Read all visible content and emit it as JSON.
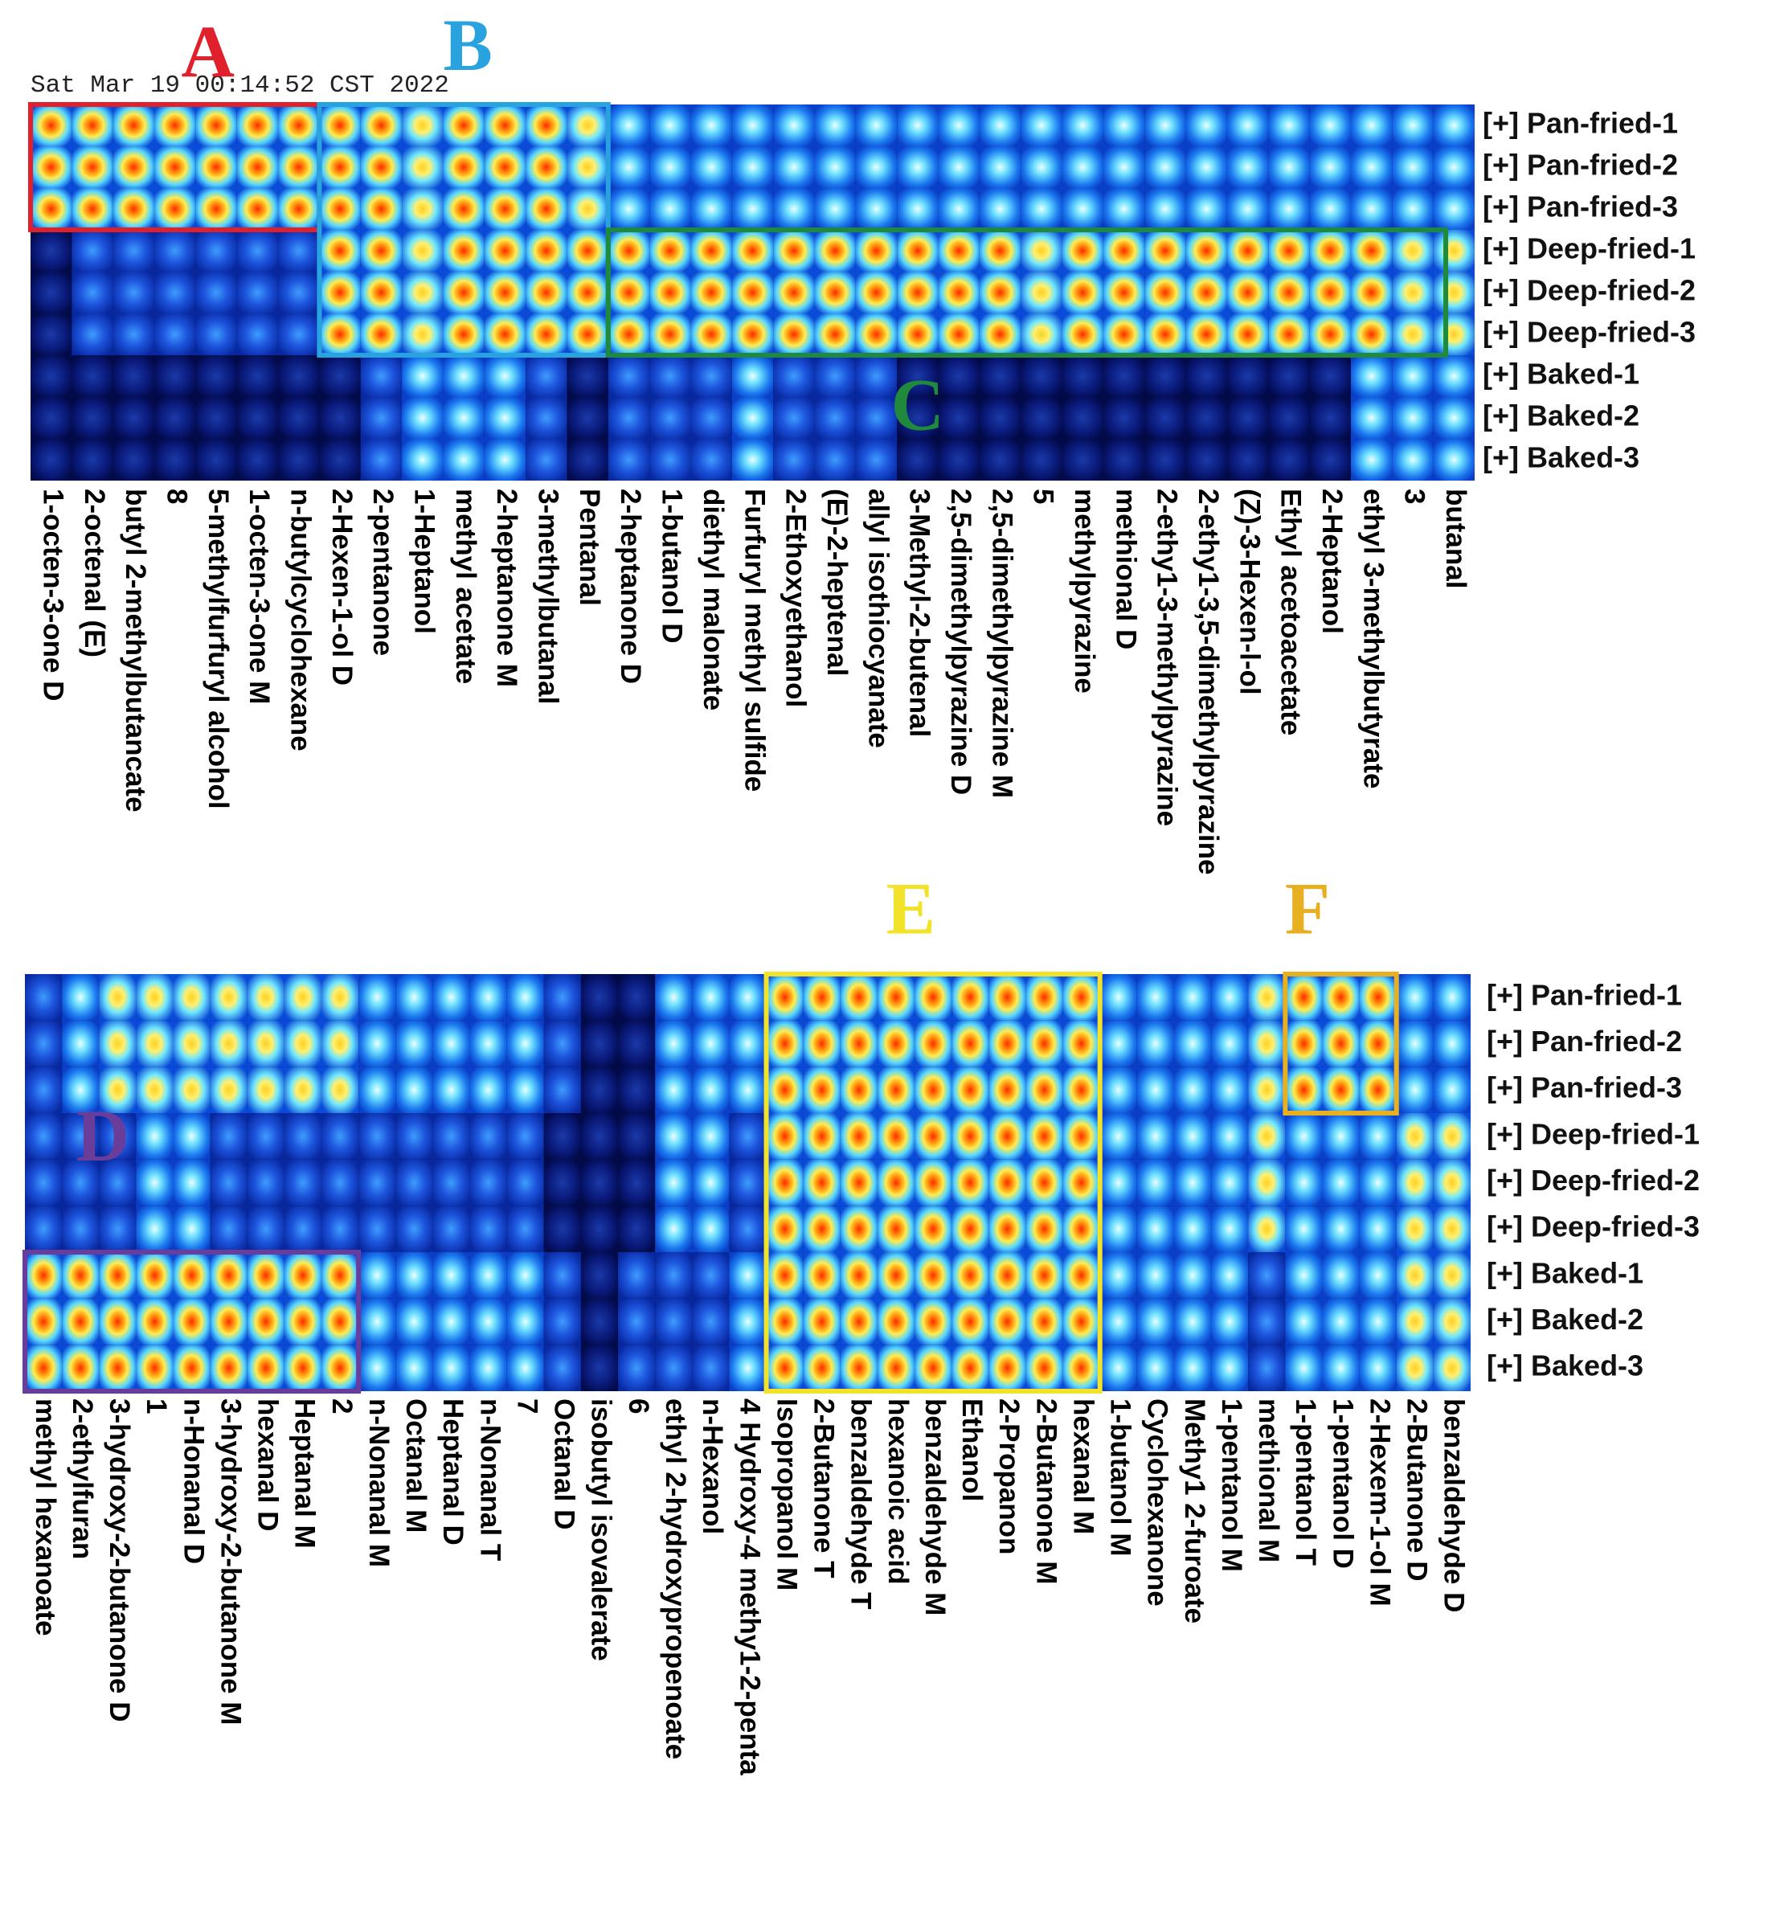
{
  "timestamp": "Sat Mar 19 00:14:52 CST 2022",
  "annotations": [
    {
      "text": "A",
      "color": "#e0202a"
    },
    {
      "text": "B",
      "color": "#29a3e0"
    },
    {
      "text": "C",
      "color": "#1f8a3c"
    },
    {
      "text": "D",
      "color": "#6a3d9a"
    },
    {
      "text": "E",
      "color": "#f2e22a"
    },
    {
      "text": "F",
      "color": "#e8b020"
    }
  ],
  "chart_data": [
    {
      "type": "heatmap",
      "clim": [
        0,
        4
      ],
      "rows": [
        "[+] Pan-fried-1",
        "[+] Pan-fried-2",
        "[+] Pan-fried-3",
        "[+] Deep-fried-1",
        "[+] Deep-fried-2",
        "[+] Deep-fried-3",
        "[+] Baked-1",
        "[+] Baked-2",
        "[+] Baked-3"
      ],
      "categories": [
        "1-octen-3-one D",
        "2-octenal (E)",
        "butyl 2-methylbutancate",
        "8",
        "5-methylfurfuryl alcohol",
        "1-octen-3-one M",
        "n-butylcyclohexane",
        "2-Hexen-1-ol D",
        "2-pentanone",
        "1-Heptanol",
        "methyl acetate",
        "2-heptanone M",
        "3-methylbutanal",
        "Pentanal",
        "2-heptanone D",
        "1-butanol D",
        "diethyl malonate",
        "Furfuryl methyl sulfide",
        "2-Ethoxyethanol",
        "(E)-2-heptenal",
        "allyl isothiocyanate",
        "3-Methyl-2-butenal",
        "2,5-dimethylpyrazine D",
        "2,5-dimethylpyrazine M",
        "5",
        "methylpyrazine",
        "methional D",
        "2-ethy1-3-methylpyrazine",
        "2-ethy1-3,5-dimethylpyrazine",
        "(Z)-3-Hexen-l-ol",
        "Ethyl acetoacetate",
        "2-Heptanol",
        "ethyl 3-methylbutyrate",
        "3",
        "butanal"
      ],
      "values": [
        [
          4,
          4,
          4,
          4,
          4,
          4,
          4,
          4,
          4,
          3,
          4,
          4,
          4,
          3,
          2,
          2,
          2,
          2,
          2,
          2,
          2,
          2,
          2,
          2,
          2,
          2,
          2,
          2,
          2,
          2,
          2,
          2,
          2,
          2,
          2
        ],
        [
          4,
          4,
          4,
          4,
          4,
          4,
          4,
          4,
          4,
          3,
          4,
          4,
          4,
          3,
          2,
          2,
          2,
          2,
          2,
          2,
          2,
          2,
          2,
          2,
          2,
          2,
          2,
          2,
          2,
          2,
          2,
          2,
          2,
          2,
          2
        ],
        [
          4,
          4,
          4,
          4,
          4,
          4,
          4,
          4,
          4,
          3,
          4,
          4,
          4,
          3,
          2,
          2,
          2,
          2,
          2,
          2,
          2,
          2,
          2,
          2,
          2,
          2,
          2,
          2,
          2,
          2,
          2,
          2,
          2,
          2,
          2
        ],
        [
          0,
          1,
          1,
          1,
          1,
          1,
          1,
          4,
          4,
          3,
          4,
          4,
          4,
          4,
          4,
          4,
          4,
          4,
          4,
          4,
          4,
          4,
          4,
          4,
          3,
          4,
          4,
          4,
          4,
          4,
          4,
          4,
          4,
          3,
          3
        ],
        [
          0,
          1,
          1,
          1,
          1,
          1,
          1,
          4,
          4,
          3,
          4,
          4,
          4,
          4,
          4,
          4,
          4,
          4,
          4,
          4,
          4,
          4,
          4,
          4,
          3,
          4,
          4,
          4,
          4,
          4,
          4,
          4,
          4,
          3,
          3
        ],
        [
          0,
          1,
          1,
          1,
          1,
          1,
          1,
          4,
          4,
          3,
          4,
          4,
          4,
          4,
          4,
          4,
          4,
          4,
          4,
          4,
          4,
          4,
          4,
          4,
          3,
          4,
          4,
          4,
          4,
          4,
          4,
          4,
          4,
          3,
          3
        ],
        [
          0,
          0,
          0,
          0,
          0,
          0,
          0,
          0,
          1,
          2,
          2,
          2,
          1,
          0,
          1,
          1,
          1,
          2,
          1,
          1,
          1,
          0,
          0,
          0,
          0,
          0,
          0,
          0,
          0,
          0,
          0,
          0,
          2,
          2,
          2
        ],
        [
          0,
          0,
          0,
          0,
          0,
          0,
          0,
          0,
          1,
          2,
          2,
          2,
          1,
          0,
          1,
          1,
          1,
          2,
          1,
          1,
          1,
          0,
          0,
          0,
          0,
          0,
          0,
          0,
          0,
          0,
          0,
          0,
          2,
          2,
          2
        ],
        [
          0,
          0,
          0,
          0,
          0,
          0,
          0,
          0,
          1,
          2,
          2,
          2,
          1,
          0,
          1,
          1,
          1,
          2,
          1,
          1,
          1,
          0,
          0,
          0,
          0,
          0,
          0,
          0,
          0,
          0,
          0,
          0,
          2,
          2,
          2
        ]
      ]
    },
    {
      "type": "heatmap",
      "clim": [
        0,
        4
      ],
      "rows": [
        "[+] Pan-fried-1",
        "[+] Pan-fried-2",
        "[+] Pan-fried-3",
        "[+] Deep-fried-1",
        "[+] Deep-fried-2",
        "[+] Deep-fried-3",
        "[+] Baked-1",
        "[+] Baked-2",
        "[+] Baked-3"
      ],
      "categories": [
        "methyl hexanoate",
        "2-ethylfuran",
        "3-hydroxy-2-butanone D",
        "1",
        "n-Honanal D",
        "3-hydroxy-2-butanone M",
        "hexanal D",
        "Heptanal M",
        "2",
        "n-Nonanal M",
        "Octanal M",
        "Heptanal D",
        "n-Nonanal T",
        "7",
        "Octanal D",
        "isobutyl isovalerate",
        "6",
        "ethyl 2-hydroxypropenoate",
        "n-Hexanol",
        "4 Hydroxy-4 methy1-2-penta",
        "Isopropanol M",
        "2-Butanone T",
        "benzaldehyde T",
        "hexanoic acid",
        "benzaldehyde M",
        "Ethanol",
        "2-Propanon",
        "2-Butanone M",
        "hexanal M",
        "1-butanol M",
        "Cyclohexanone",
        "Methy1 2-furoate",
        "1-pentanol M",
        "methional M",
        "1-pentanol T",
        "1-pentanol D",
        "2-Hexem-1-ol M",
        "2-Butanone D",
        "benzaldehyde D"
      ],
      "values": [
        [
          1,
          2,
          3,
          3,
          3,
          3,
          3,
          3,
          3,
          2,
          2,
          2,
          2,
          2,
          1,
          0,
          0,
          2,
          2,
          2,
          4,
          4,
          4,
          4,
          4,
          4,
          4,
          4,
          4,
          2,
          2,
          2,
          2,
          3,
          4,
          4,
          4,
          2,
          2
        ],
        [
          1,
          2,
          3,
          3,
          3,
          3,
          3,
          3,
          3,
          2,
          2,
          2,
          2,
          2,
          1,
          0,
          0,
          2,
          2,
          2,
          4,
          4,
          4,
          4,
          4,
          4,
          4,
          4,
          4,
          2,
          2,
          2,
          2,
          3,
          4,
          4,
          4,
          2,
          2
        ],
        [
          1,
          2,
          3,
          3,
          3,
          3,
          3,
          3,
          3,
          2,
          2,
          2,
          2,
          2,
          1,
          0,
          0,
          2,
          2,
          2,
          4,
          4,
          4,
          4,
          4,
          4,
          4,
          4,
          4,
          2,
          2,
          2,
          2,
          3,
          4,
          4,
          4,
          2,
          2
        ],
        [
          1,
          1,
          1,
          2,
          2,
          1,
          1,
          1,
          1,
          1,
          1,
          1,
          1,
          1,
          0,
          0,
          0,
          2,
          2,
          1,
          4,
          4,
          4,
          4,
          4,
          4,
          4,
          4,
          4,
          2,
          2,
          2,
          2,
          3,
          2,
          2,
          2,
          3,
          3
        ],
        [
          1,
          1,
          1,
          2,
          2,
          1,
          1,
          1,
          1,
          1,
          1,
          1,
          1,
          1,
          0,
          0,
          0,
          2,
          2,
          1,
          4,
          4,
          4,
          4,
          4,
          4,
          4,
          4,
          4,
          2,
          2,
          2,
          2,
          3,
          2,
          2,
          2,
          3,
          3
        ],
        [
          1,
          1,
          1,
          2,
          2,
          1,
          1,
          1,
          1,
          1,
          1,
          1,
          1,
          1,
          0,
          0,
          0,
          2,
          2,
          1,
          4,
          4,
          4,
          4,
          4,
          4,
          4,
          4,
          4,
          2,
          2,
          2,
          2,
          3,
          2,
          2,
          2,
          3,
          3
        ],
        [
          4,
          4,
          4,
          4,
          4,
          4,
          4,
          4,
          4,
          2,
          2,
          2,
          2,
          2,
          1,
          0,
          1,
          1,
          1,
          2,
          4,
          4,
          4,
          4,
          4,
          4,
          4,
          4,
          4,
          2,
          2,
          2,
          2,
          1,
          2,
          2,
          2,
          3,
          3
        ],
        [
          4,
          4,
          4,
          4,
          4,
          4,
          4,
          4,
          4,
          2,
          2,
          2,
          2,
          2,
          1,
          0,
          1,
          1,
          1,
          2,
          4,
          4,
          4,
          4,
          4,
          4,
          4,
          4,
          4,
          2,
          2,
          2,
          2,
          1,
          2,
          2,
          2,
          3,
          3
        ],
        [
          4,
          4,
          4,
          4,
          4,
          4,
          4,
          4,
          4,
          2,
          2,
          2,
          2,
          2,
          1,
          0,
          1,
          1,
          1,
          2,
          4,
          4,
          4,
          4,
          4,
          4,
          4,
          4,
          4,
          2,
          2,
          2,
          2,
          1,
          2,
          2,
          2,
          3,
          3
        ]
      ]
    }
  ]
}
